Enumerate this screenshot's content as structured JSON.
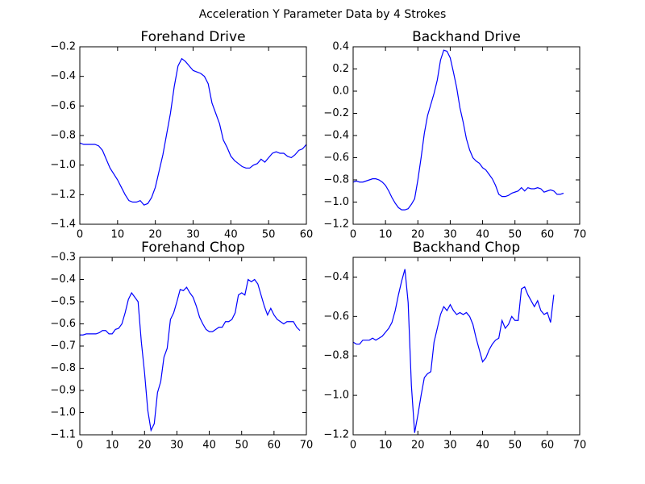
{
  "title": "Acceleration Y Parameter Data by 4 Strokes",
  "chart_data": [
    {
      "type": "line",
      "title": "Forehand Drive",
      "color": "#0000ff",
      "x": [
        0,
        1,
        2,
        3,
        4,
        5,
        6,
        7,
        8,
        9,
        10,
        11,
        12,
        13,
        14,
        15,
        16,
        17,
        18,
        19,
        20,
        21,
        22,
        23,
        24,
        25,
        26,
        27,
        28,
        29,
        30,
        31,
        32,
        33,
        34,
        35,
        36,
        37,
        38,
        39,
        40,
        41,
        42,
        43,
        44,
        45,
        46,
        47,
        48,
        49,
        50,
        51,
        52,
        53,
        54,
        55,
        56,
        57,
        58,
        59,
        60
      ],
      "values": [
        -0.85,
        -0.86,
        -0.86,
        -0.86,
        -0.86,
        -0.87,
        -0.9,
        -0.96,
        -1.02,
        -1.06,
        -1.1,
        -1.15,
        -1.2,
        -1.24,
        -1.25,
        -1.25,
        -1.24,
        -1.27,
        -1.26,
        -1.22,
        -1.15,
        -1.04,
        -0.93,
        -0.79,
        -0.65,
        -0.47,
        -0.33,
        -0.28,
        -0.3,
        -0.33,
        -0.36,
        -0.37,
        -0.38,
        -0.4,
        -0.45,
        -0.58,
        -0.65,
        -0.72,
        -0.83,
        -0.88,
        -0.94,
        -0.97,
        -0.99,
        -1.01,
        -1.02,
        -1.02,
        -1.0,
        -0.99,
        -0.96,
        -0.98,
        -0.95,
        -0.92,
        -0.91,
        -0.92,
        -0.92,
        -0.94,
        -0.95,
        -0.93,
        -0.9,
        -0.89,
        -0.86
      ],
      "xlim": [
        0,
        60
      ],
      "ylim": [
        -1.4,
        -0.2
      ],
      "xticks": [
        0,
        10,
        20,
        30,
        40,
        50,
        60
      ],
      "yticks": [
        {
          "value": -1.4,
          "label": "−1.4"
        },
        {
          "value": -1.2,
          "label": "−1.2"
        },
        {
          "value": -1.0,
          "label": "−1.0"
        },
        {
          "value": -0.8,
          "label": "−0.8"
        },
        {
          "value": -0.6,
          "label": "−0.6"
        },
        {
          "value": -0.4,
          "label": "−0.4"
        },
        {
          "value": -0.2,
          "label": "−0.2"
        }
      ]
    },
    {
      "type": "line",
      "title": "Backhand Drive",
      "color": "#0000ff",
      "x": [
        0,
        1,
        2,
        3,
        4,
        5,
        6,
        7,
        8,
        9,
        10,
        11,
        12,
        13,
        14,
        15,
        16,
        17,
        18,
        19,
        20,
        21,
        22,
        23,
        24,
        25,
        26,
        27,
        28,
        29,
        30,
        31,
        32,
        33,
        34,
        35,
        36,
        37,
        38,
        39,
        40,
        41,
        42,
        43,
        44,
        45,
        46,
        47,
        48,
        49,
        50,
        51,
        52,
        53,
        54,
        55,
        56,
        57,
        58,
        59,
        60,
        61,
        62,
        63,
        64,
        65
      ],
      "values": [
        -0.82,
        -0.81,
        -0.82,
        -0.82,
        -0.81,
        -0.8,
        -0.79,
        -0.79,
        -0.8,
        -0.82,
        -0.85,
        -0.9,
        -0.96,
        -1.01,
        -1.05,
        -1.07,
        -1.07,
        -1.06,
        -1.02,
        -0.97,
        -0.8,
        -0.6,
        -0.38,
        -0.22,
        -0.12,
        -0.02,
        0.1,
        0.28,
        0.37,
        0.36,
        0.3,
        0.17,
        0.03,
        -0.15,
        -0.28,
        -0.43,
        -0.53,
        -0.6,
        -0.63,
        -0.65,
        -0.69,
        -0.71,
        -0.75,
        -0.79,
        -0.85,
        -0.93,
        -0.95,
        -0.95,
        -0.94,
        -0.92,
        -0.91,
        -0.9,
        -0.87,
        -0.9,
        -0.87,
        -0.88,
        -0.88,
        -0.87,
        -0.88,
        -0.91,
        -0.9,
        -0.89,
        -0.9,
        -0.93,
        -0.93,
        -0.92
      ],
      "xlim": [
        0,
        70
      ],
      "ylim": [
        -1.2,
        0.4
      ],
      "xticks": [
        0,
        10,
        20,
        30,
        40,
        50,
        60,
        70
      ],
      "yticks": [
        {
          "value": -1.2,
          "label": "−1.2"
        },
        {
          "value": -1.0,
          "label": "−1.0"
        },
        {
          "value": -0.8,
          "label": "−0.8"
        },
        {
          "value": -0.6,
          "label": "−0.6"
        },
        {
          "value": -0.4,
          "label": "−0.4"
        },
        {
          "value": -0.2,
          "label": "−0.2"
        },
        {
          "value": 0,
          "label": "0.0"
        },
        0.2,
        0.4
      ]
    },
    {
      "type": "line",
      "title": "Forehand Chop",
      "color": "#0000ff",
      "x": [
        0,
        1,
        2,
        3,
        4,
        5,
        6,
        7,
        8,
        9,
        10,
        11,
        12,
        13,
        14,
        15,
        16,
        17,
        18,
        19,
        20,
        21,
        22,
        23,
        24,
        25,
        26,
        27,
        28,
        29,
        30,
        31,
        32,
        33,
        34,
        35,
        36,
        37,
        38,
        39,
        40,
        41,
        42,
        43,
        44,
        45,
        46,
        47,
        48,
        49,
        50,
        51,
        52,
        53,
        54,
        55,
        56,
        57,
        58,
        59,
        60,
        61,
        62,
        63,
        64,
        65,
        66,
        67,
        68
      ],
      "values": [
        -0.65,
        -0.65,
        -0.645,
        -0.645,
        -0.645,
        -0.645,
        -0.64,
        -0.63,
        -0.63,
        -0.645,
        -0.645,
        -0.625,
        -0.62,
        -0.6,
        -0.55,
        -0.49,
        -0.46,
        -0.48,
        -0.5,
        -0.68,
        -0.82,
        -0.99,
        -1.08,
        -1.05,
        -0.91,
        -0.86,
        -0.75,
        -0.71,
        -0.58,
        -0.55,
        -0.5,
        -0.445,
        -0.45,
        -0.435,
        -0.46,
        -0.48,
        -0.52,
        -0.57,
        -0.6,
        -0.625,
        -0.635,
        -0.635,
        -0.625,
        -0.615,
        -0.615,
        -0.59,
        -0.59,
        -0.58,
        -0.55,
        -0.47,
        -0.46,
        -0.47,
        -0.4,
        -0.41,
        -0.4,
        -0.42,
        -0.47,
        -0.52,
        -0.56,
        -0.53,
        -0.56,
        -0.58,
        -0.59,
        -0.6,
        -0.59,
        -0.59,
        -0.59,
        -0.615,
        -0.63
      ],
      "xlim": [
        0,
        70
      ],
      "ylim": [
        -1.1,
        -0.3
      ],
      "xticks": [
        0,
        10,
        20,
        30,
        40,
        50,
        60,
        70
      ],
      "yticks": [
        {
          "value": -1.1,
          "label": "−1.1"
        },
        {
          "value": -1.0,
          "label": "−1.0"
        },
        {
          "value": -0.9,
          "label": "−0.9"
        },
        {
          "value": -0.8,
          "label": "−0.8"
        },
        {
          "value": -0.7,
          "label": "−0.7"
        },
        {
          "value": -0.6,
          "label": "−0.6"
        },
        {
          "value": -0.5,
          "label": "−0.5"
        },
        {
          "value": -0.4,
          "label": "−0.4"
        },
        {
          "value": -0.3,
          "label": "−0.3"
        }
      ]
    },
    {
      "type": "line",
      "title": "Backhand Chop",
      "color": "#0000ff",
      "x": [
        0,
        1,
        2,
        3,
        4,
        5,
        6,
        7,
        8,
        9,
        10,
        11,
        12,
        13,
        14,
        15,
        16,
        17,
        18,
        19,
        20,
        21,
        22,
        23,
        24,
        25,
        26,
        27,
        28,
        29,
        30,
        31,
        32,
        33,
        34,
        35,
        36,
        37,
        38,
        39,
        40,
        41,
        42,
        43,
        44,
        45,
        46,
        47,
        48,
        49,
        50,
        51,
        52,
        53,
        54,
        55,
        56,
        57,
        58,
        59,
        60,
        61,
        62
      ],
      "values": [
        -0.73,
        -0.74,
        -0.74,
        -0.72,
        -0.72,
        -0.72,
        -0.71,
        -0.72,
        -0.71,
        -0.7,
        -0.68,
        -0.66,
        -0.63,
        -0.57,
        -0.49,
        -0.42,
        -0.36,
        -0.53,
        -0.95,
        -1.19,
        -1.1,
        -1.0,
        -0.91,
        -0.89,
        -0.88,
        -0.73,
        -0.66,
        -0.59,
        -0.55,
        -0.57,
        -0.54,
        -0.57,
        -0.59,
        -0.58,
        -0.59,
        -0.58,
        -0.6,
        -0.64,
        -0.71,
        -0.77,
        -0.83,
        -0.81,
        -0.77,
        -0.74,
        -0.72,
        -0.71,
        -0.62,
        -0.66,
        -0.64,
        -0.6,
        -0.62,
        -0.62,
        -0.46,
        -0.45,
        -0.49,
        -0.52,
        -0.55,
        -0.52,
        -0.57,
        -0.59,
        -0.58,
        -0.63,
        -0.49
      ],
      "xlim": [
        0,
        70
      ],
      "ylim": [
        -1.2,
        -0.3
      ],
      "xticks": [
        0,
        10,
        20,
        30,
        40,
        50,
        60,
        70
      ],
      "yticks": [
        {
          "value": -1.2,
          "label": "−1.2"
        },
        {
          "value": -1.0,
          "label": "−1.0"
        },
        {
          "value": -0.8,
          "label": "−0.8"
        },
        {
          "value": -0.6,
          "label": "−0.6"
        },
        {
          "value": -0.4,
          "label": "−0.4"
        }
      ]
    }
  ]
}
